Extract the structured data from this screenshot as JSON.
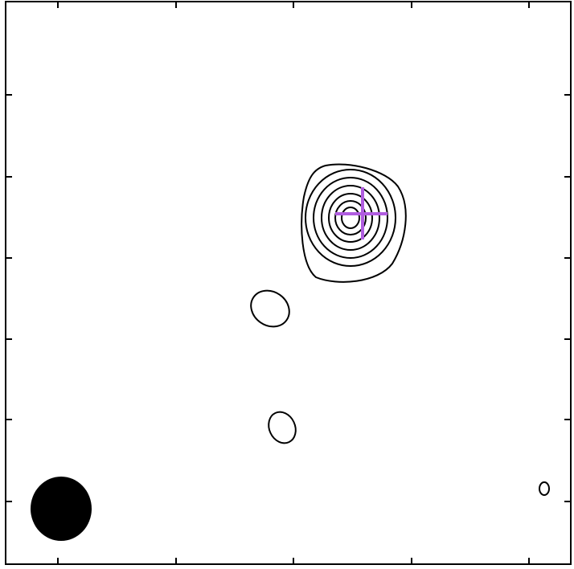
{
  "chart_data": {
    "type": "contour",
    "title": "",
    "xlabel": "",
    "ylabel": "",
    "frame_color": "#000000",
    "contour_color": "#000000",
    "marker_color": "#b05ce0",
    "beam_color": "#000000",
    "grid": false,
    "tick_labels": false,
    "x_ticks_count": 5,
    "y_ticks_count": 6,
    "contours": [
      {
        "name": "source",
        "levels": 7
      },
      {
        "name": "blob-middle"
      },
      {
        "name": "blob-lower"
      },
      {
        "name": "blob-small-right"
      }
    ],
    "marker": {
      "shape": "cross"
    },
    "beam": {
      "shape": "ellipse",
      "location": "bottom-left"
    }
  }
}
